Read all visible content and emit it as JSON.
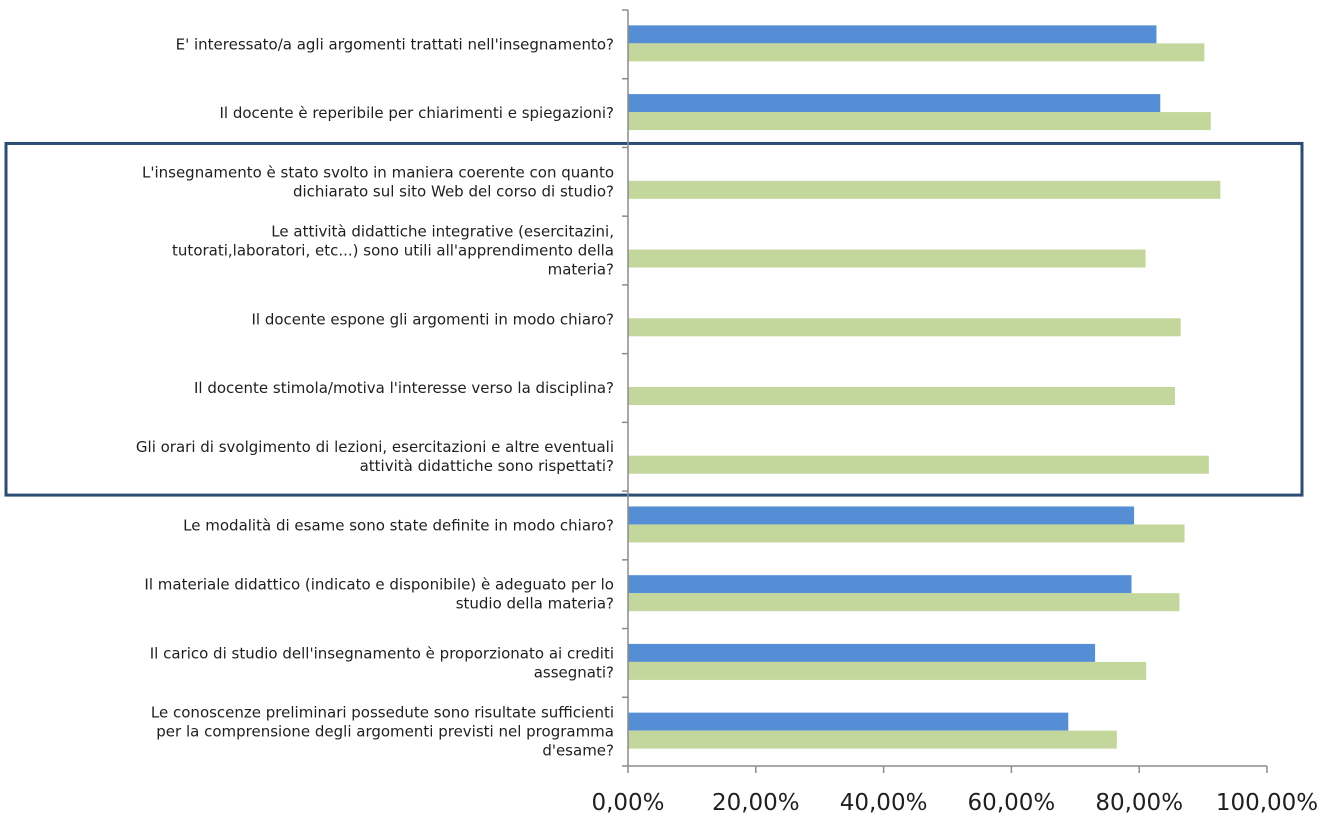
{
  "chart_data": {
    "type": "bar",
    "orientation": "horizontal",
    "categories": [
      [
        "E' interessato/a agli argomenti trattati nell'insegnamento?"
      ],
      [
        "Il docente è reperibile per chiarimenti e spiegazioni?"
      ],
      [
        "L'insegnamento è stato svolto in maniera coerente con quanto",
        "dichiarato sul sito Web del corso di studio?"
      ],
      [
        "Le attività didattiche integrative (esercitazini,",
        "tutorati,laboratori, etc...) sono utili all'apprendimento della",
        "materia?"
      ],
      [
        "Il docente espone gli argomenti in modo chiaro?"
      ],
      [
        "Il docente stimola/motiva l'interesse verso la disciplina?"
      ],
      [
        "Gli orari di svolgimento di lezioni, esercitazioni e altre eventuali",
        "attività didattiche sono rispettati?"
      ],
      [
        "Le modalità di esame sono state definite in modo chiaro?"
      ],
      [
        "Il materiale didattico (indicato e disponibile) è adeguato per lo",
        "studio della materia?"
      ],
      [
        "Il carico di studio dell'insegnamento è proporzionato ai crediti",
        "assegnati?"
      ],
      [
        "Le conoscenze preliminari possedute sono risultate sufficienti",
        "per la comprensione degli argomenti previsti nel programma",
        "d'esame?"
      ]
    ],
    "series": [
      {
        "color": "#558ED5",
        "values": [
          82.7,
          83.3,
          null,
          null,
          null,
          null,
          null,
          79.2,
          78.8,
          73.1,
          68.9
        ]
      },
      {
        "color": "#C3D69B",
        "values": [
          90.2,
          91.2,
          92.7,
          81.0,
          86.5,
          85.6,
          90.9,
          87.1,
          86.3,
          81.1,
          76.5
        ]
      }
    ],
    "xlim": [
      0,
      100
    ],
    "x_ticks": [
      "0,00%",
      "20,00%",
      "40,00%",
      "60,00%",
      "80,00%",
      "100,00%"
    ],
    "highlight_box": {
      "from_category": 2,
      "to_category": 6,
      "color": "#2D4C73"
    }
  }
}
